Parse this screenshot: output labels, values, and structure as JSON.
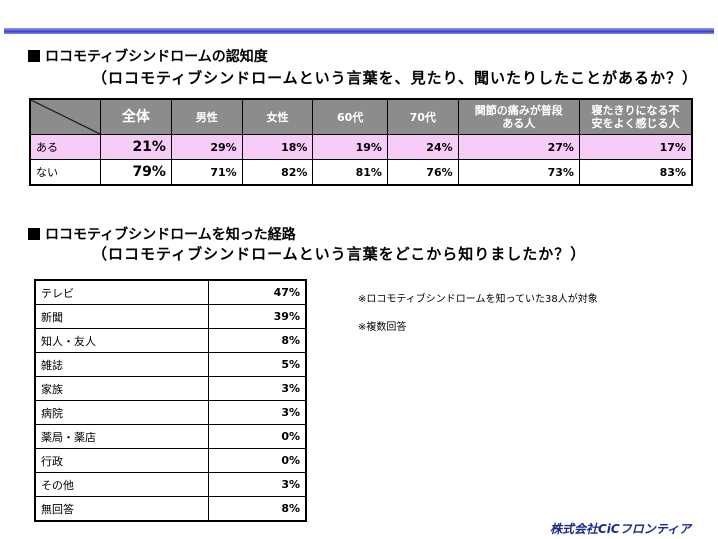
{
  "section1": {
    "title": "ロコモティブシンドロームの認知度",
    "subtitle": "（ロコモティブシンドロームという言葉を、見たり、聞いたりしたことがあるか？）",
    "headers": [
      "全体",
      "男性",
      "女性",
      "60代",
      "70代",
      "関節の痛みが普段ある人",
      "寝たきりになる不安をよく感じる人"
    ],
    "rows": [
      {
        "label": "ある",
        "values": [
          "21%",
          "29%",
          "18%",
          "19%",
          "24%",
          "27%",
          "17%"
        ]
      },
      {
        "label": "ない",
        "values": [
          "79%",
          "71%",
          "82%",
          "81%",
          "76%",
          "73%",
          "83%"
        ]
      }
    ]
  },
  "section2": {
    "title": "ロコモティブシンドロームを知った経路",
    "subtitle": "（ロコモティブシンドロームという言葉をどこから知りましたか？）",
    "rows": [
      {
        "label": "テレビ",
        "value": "47%"
      },
      {
        "label": "新聞",
        "value": "39%"
      },
      {
        "label": "知人・友人",
        "value": "8%"
      },
      {
        "label": "雑誌",
        "value": "5%"
      },
      {
        "label": "家族",
        "value": "3%"
      },
      {
        "label": "病院",
        "value": "3%"
      },
      {
        "label": "薬局・薬店",
        "value": "0%"
      },
      {
        "label": "行政",
        "value": "0%"
      },
      {
        "label": "その他",
        "value": "3%"
      },
      {
        "label": "無回答",
        "value": "8%"
      }
    ],
    "notes": [
      "※ロコモティブシンドロームを知っていた38人が対象",
      "※複数回答"
    ]
  },
  "footer": {
    "company": "株式会社CiCフロンティア"
  }
}
